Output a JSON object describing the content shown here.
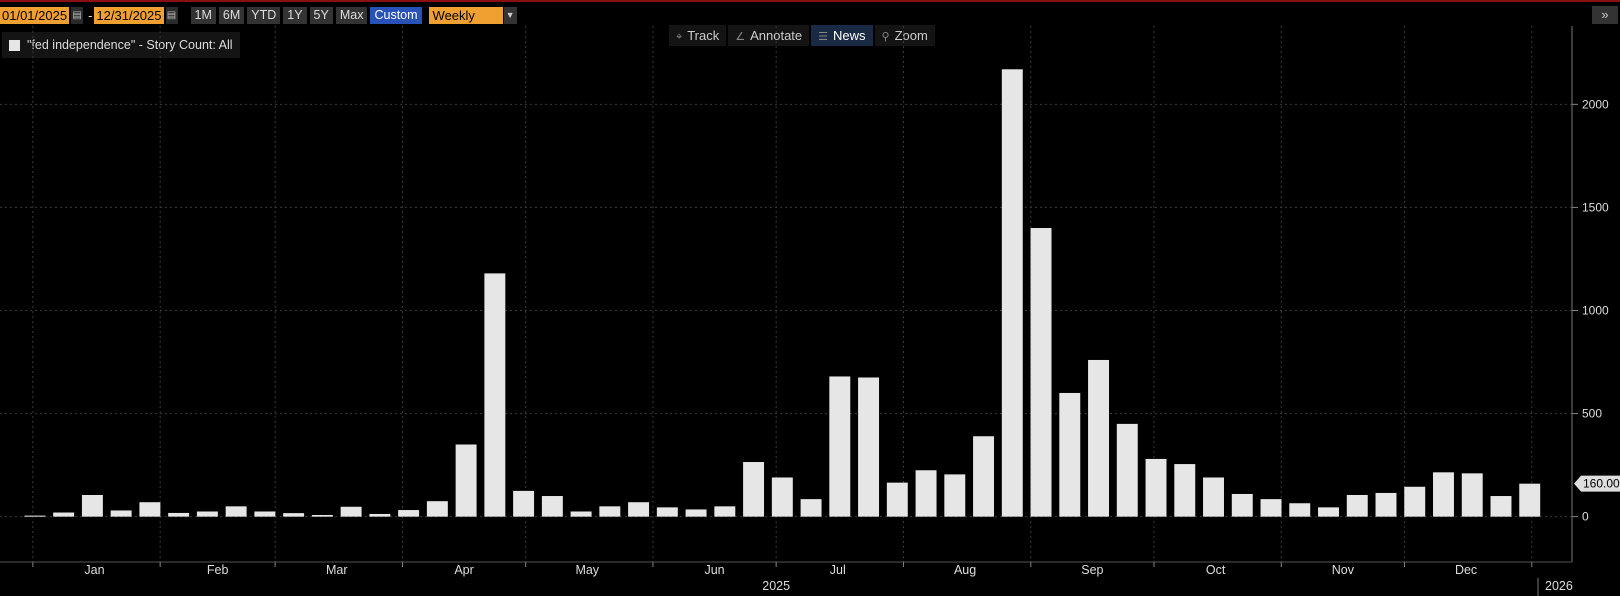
{
  "toolbar": {
    "start_date": "01/01/2025",
    "end_date": "12/31/2025",
    "separator": "-",
    "ranges": [
      "1M",
      "6M",
      "YTD",
      "1Y",
      "5Y",
      "Max",
      "Custom"
    ],
    "active_range": "Custom",
    "period": "Weekly"
  },
  "chart_tools": [
    {
      "label": "Track",
      "icon": "crosshair-icon"
    },
    {
      "label": "Annotate",
      "icon": "pencil-icon"
    },
    {
      "label": "News",
      "icon": "news-icon"
    },
    {
      "label": "Zoom",
      "icon": "magnifier-icon"
    }
  ],
  "legend": {
    "label": "\"fed independence\" - Story Count: All"
  },
  "colors": {
    "bar": "#e6e6e6",
    "grid": "#3a3a3a",
    "background": "#000000",
    "accent": "#f0a030",
    "active_button": "#2952b8"
  },
  "chart_data": {
    "type": "bar",
    "title": "",
    "xlabel": "2025",
    "ylabel": "",
    "ylim": [
      -220,
      2380
    ],
    "yticks": [
      0,
      500,
      1000,
      1500,
      2000
    ],
    "last_value_label": "160.00",
    "last_value": 160,
    "month_labels": [
      "Jan",
      "Feb",
      "Mar",
      "Apr",
      "May",
      "Jun",
      "Jul",
      "Aug",
      "Sep",
      "Oct",
      "Nov",
      "Dec"
    ],
    "year_labels": [
      "2025",
      "2026"
    ],
    "grid": true,
    "series": [
      {
        "name": "\"fed independence\" - Story Count: All",
        "dates": [
          "2024-12-29",
          "2025-01-05",
          "2025-01-12",
          "2025-01-19",
          "2025-01-26",
          "2025-02-02",
          "2025-02-09",
          "2025-02-16",
          "2025-02-23",
          "2025-03-02",
          "2025-03-09",
          "2025-03-16",
          "2025-03-23",
          "2025-03-30",
          "2025-04-06",
          "2025-04-13",
          "2025-04-20",
          "2025-04-27",
          "2025-05-04",
          "2025-05-11",
          "2025-05-18",
          "2025-05-25",
          "2025-06-01",
          "2025-06-08",
          "2025-06-15",
          "2025-06-22",
          "2025-06-29",
          "2025-07-06",
          "2025-07-13",
          "2025-07-20",
          "2025-07-27",
          "2025-08-03",
          "2025-08-10",
          "2025-08-17",
          "2025-08-24",
          "2025-08-31",
          "2025-09-07",
          "2025-09-14",
          "2025-09-21",
          "2025-09-28",
          "2025-10-05",
          "2025-10-12",
          "2025-10-19",
          "2025-10-26",
          "2025-11-02",
          "2025-11-09",
          "2025-11-16",
          "2025-11-23",
          "2025-11-30",
          "2025-12-07",
          "2025-12-14",
          "2025-12-21",
          "2025-12-28"
        ],
        "values": [
          5,
          20,
          105,
          30,
          70,
          18,
          25,
          50,
          25,
          17,
          8,
          48,
          13,
          32,
          75,
          350,
          1180,
          125,
          100,
          25,
          50,
          70,
          45,
          35,
          50,
          265,
          190,
          85,
          680,
          675,
          165,
          225,
          205,
          390,
          2170,
          1400,
          600,
          760,
          450,
          280,
          255,
          190,
          110,
          85,
          65,
          45,
          105,
          115,
          145,
          215,
          210,
          100,
          160
        ]
      }
    ]
  }
}
